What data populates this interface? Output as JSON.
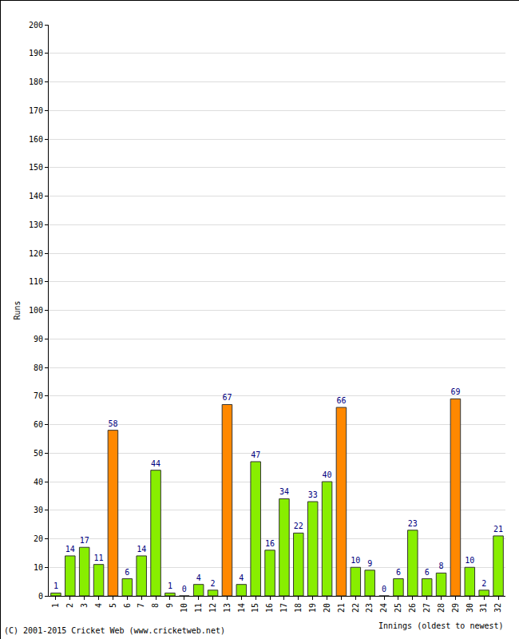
{
  "chart_data": {
    "type": "bar",
    "x_label": "Innings (oldest to newest)",
    "y_label": "Runs",
    "annotations": [
      "(C) 2001-2015 Cricket Web (www.cricketweb.net)"
    ],
    "categories": [
      "1",
      "2",
      "3",
      "4",
      "5",
      "6",
      "7",
      "8",
      "9",
      "10",
      "11",
      "12",
      "13",
      "14",
      "15",
      "16",
      "17",
      "18",
      "19",
      "20",
      "21",
      "22",
      "23",
      "24",
      "25",
      "26",
      "27",
      "28",
      "29",
      "30",
      "31",
      "32"
    ],
    "values": [
      1,
      14,
      17,
      11,
      58,
      6,
      14,
      44,
      1,
      0,
      4,
      2,
      67,
      4,
      47,
      16,
      34,
      22,
      33,
      40,
      66,
      10,
      9,
      0,
      6,
      23,
      6,
      8,
      69,
      10,
      2,
      21
    ],
    "colors": [
      "#88ee00",
      "#88ee00",
      "#88ee00",
      "#88ee00",
      "#ff8800",
      "#88ee00",
      "#88ee00",
      "#88ee00",
      "#88ee00",
      "#88ee00",
      "#88ee00",
      "#88ee00",
      "#ff8800",
      "#88ee00",
      "#88ee00",
      "#88ee00",
      "#88ee00",
      "#88ee00",
      "#88ee00",
      "#88ee00",
      "#ff8800",
      "#88ee00",
      "#88ee00",
      "#88ee00",
      "#88ee00",
      "#88ee00",
      "#88ee00",
      "#88ee00",
      "#ff8800",
      "#88ee00",
      "#88ee00",
      "#88ee00"
    ],
    "ylim": [
      0,
      200
    ],
    "yticks": [
      0,
      10,
      20,
      30,
      40,
      50,
      60,
      70,
      80,
      90,
      100,
      110,
      120,
      130,
      140,
      150,
      160,
      170,
      180,
      190,
      200
    ],
    "grid": true,
    "data_labels": true
  }
}
